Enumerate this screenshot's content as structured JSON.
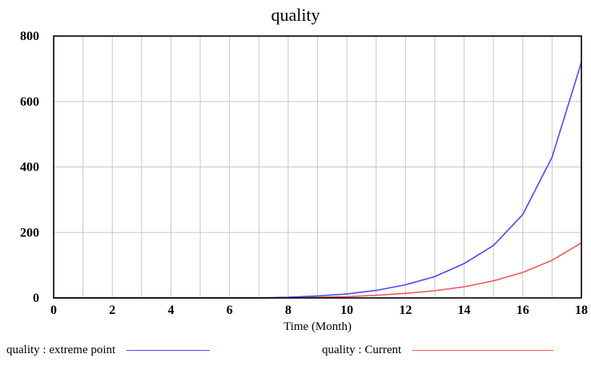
{
  "chart_data": {
    "type": "line",
    "title": "quality",
    "xlabel": "Time (Month)",
    "ylabel": "",
    "xlim": [
      0,
      18
    ],
    "ylim": [
      0,
      800
    ],
    "xticks": [
      0,
      2,
      4,
      6,
      8,
      10,
      12,
      14,
      16,
      18
    ],
    "yticks": [
      0,
      200,
      400,
      600,
      800
    ],
    "grid": true,
    "legend_position": "bottom",
    "x": [
      0,
      1,
      2,
      3,
      4,
      5,
      6,
      7,
      7.5,
      8,
      9,
      10,
      11,
      12,
      13,
      14,
      15,
      16,
      17,
      18
    ],
    "series": [
      {
        "name": "quality : extreme point",
        "color": "#4a4af5",
        "values": [
          0,
          0,
          0,
          0,
          0,
          0,
          0,
          0,
          1,
          2,
          6,
          12,
          23,
          40,
          65,
          105,
          160,
          255,
          430,
          720
        ]
      },
      {
        "name": "quality : Current",
        "color": "#f05a5a",
        "values": [
          0,
          0,
          0,
          0,
          0,
          0,
          0,
          0,
          0.5,
          1,
          2,
          4,
          8,
          14,
          22,
          34,
          52,
          78,
          115,
          168
        ]
      }
    ]
  }
}
